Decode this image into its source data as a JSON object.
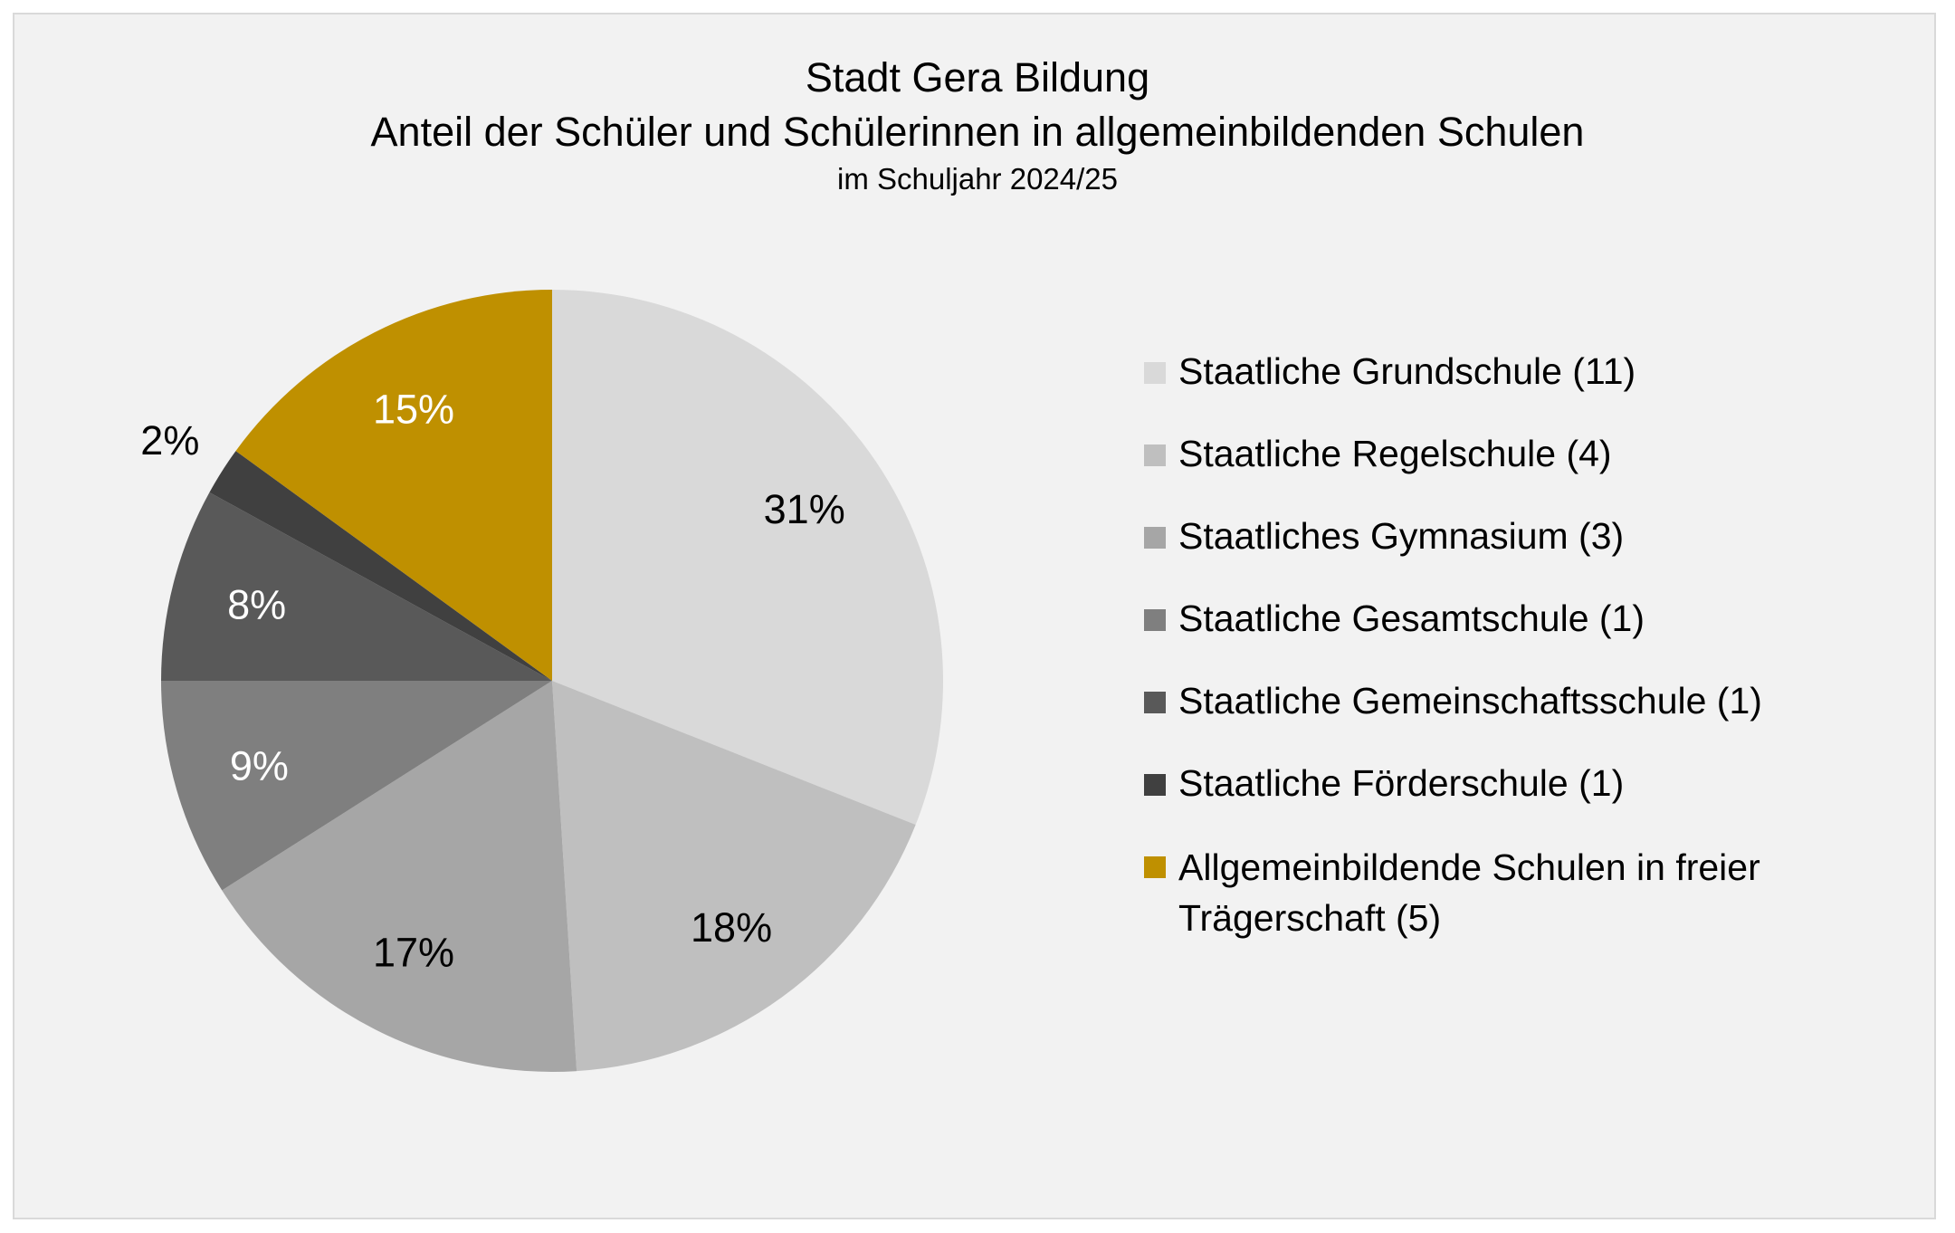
{
  "chart_data": {
    "type": "pie",
    "title": "Stadt Gera Bildung",
    "subtitle": "Anteil der Schüler und Schülerinnen in allgemeinbildenden Schulen",
    "subsubtitle": "im Schuljahr 2024/25",
    "legend_position": "right",
    "start_angle_deg": 0,
    "direction": "clockwise",
    "slices": [
      {
        "label": "Staatliche Grundschule (11)",
        "value": 31,
        "value_label": "31%",
        "color": "#d9d9d9",
        "label_color": "#000000"
      },
      {
        "label": "Staatliche Regelschule (4)",
        "value": 18,
        "value_label": "18%",
        "color": "#bfbfbf",
        "label_color": "#000000"
      },
      {
        "label": "Staatliches Gymnasium (3)",
        "value": 17,
        "value_label": "17%",
        "color": "#a6a6a6",
        "label_color": "#000000"
      },
      {
        "label": "Staatliche Gesamtschule (1)",
        "value": 9,
        "value_label": "9%",
        "color": "#7f7f7f",
        "label_color": "#ffffff"
      },
      {
        "label": "Staatliche Gemeinschaftsschule (1)",
        "value": 8,
        "value_label": "8%",
        "color": "#595959",
        "label_color": "#ffffff"
      },
      {
        "label": "Staatliche Förderschule (1)",
        "value": 2,
        "value_label": "2%",
        "color": "#404040",
        "label_color": "#000000"
      },
      {
        "label": "Allgemeinbildende Schulen in freier Trägerschaft (5)",
        "value": 15,
        "value_label": "15%",
        "color": "#bf9000",
        "label_color": "#ffffff"
      }
    ]
  }
}
